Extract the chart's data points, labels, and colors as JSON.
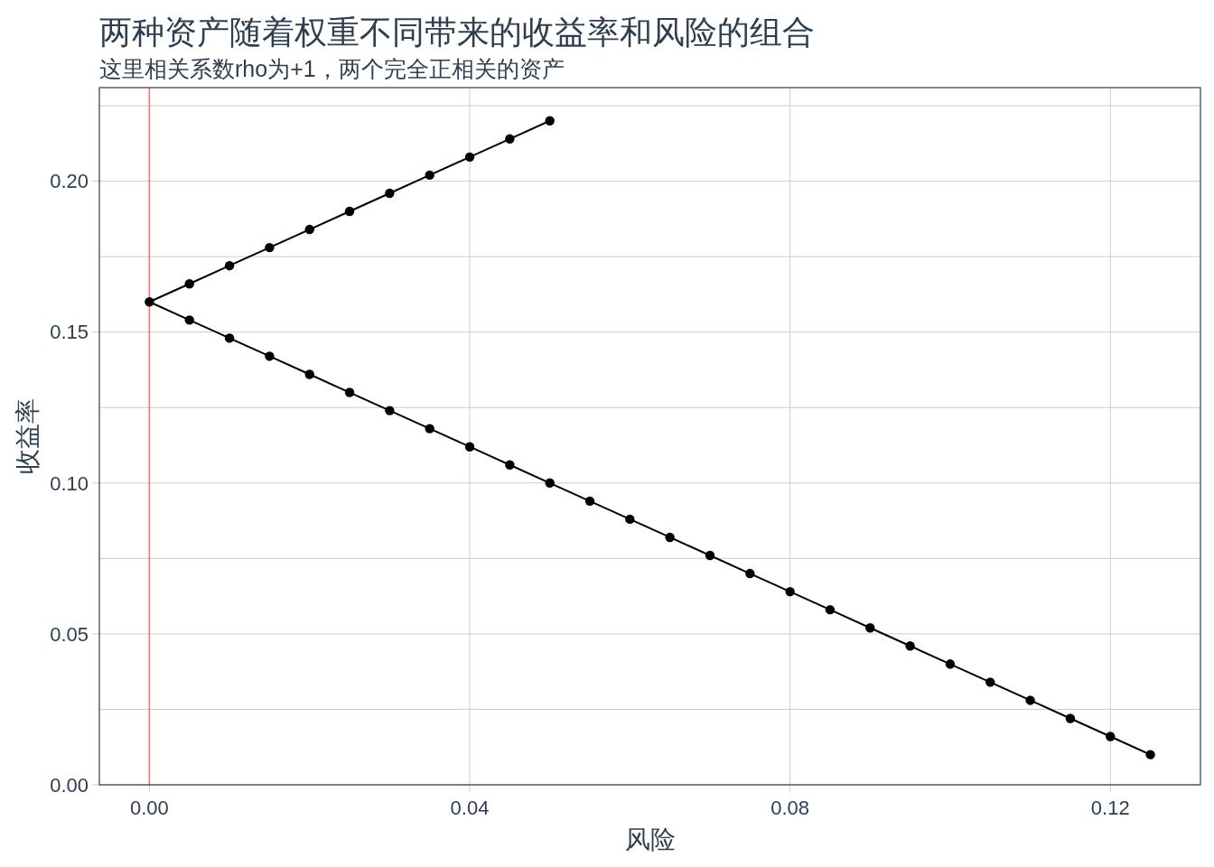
{
  "chart_data": {
    "type": "line",
    "title": "两种资产随着权重不同带来的收益率和风险的组合",
    "subtitle": "这里相关系数rho为+1，两个完全正相关的资产",
    "xlabel": "风险",
    "ylabel": "收益率",
    "x": [
      0.05,
      0.045,
      0.04,
      0.035,
      0.03,
      0.025,
      0.02,
      0.015,
      0.01,
      0.005,
      0,
      0.005,
      0.01,
      0.015,
      0.02,
      0.025,
      0.03,
      0.035,
      0.04,
      0.045,
      0.05,
      0.055,
      0.06,
      0.065,
      0.07,
      0.075,
      0.08,
      0.085,
      0.09,
      0.095,
      0.1,
      0.105,
      0.11,
      0.115,
      0.12,
      0.125
    ],
    "series": [
      {
        "color": "#000000",
        "values": [
          0.22,
          0.214,
          0.208,
          0.202,
          0.196,
          0.19,
          0.184,
          0.178,
          0.172,
          0.166,
          0.16,
          0.154,
          0.148,
          0.142,
          0.136,
          0.13,
          0.124,
          0.118,
          0.112,
          0.106,
          0.1,
          0.094,
          0.088,
          0.082,
          0.076,
          0.07,
          0.064,
          0.058,
          0.052,
          0.046,
          0.04,
          0.034,
          0.028,
          0.022,
          0.016,
          0.01
        ]
      }
    ],
    "marker": "circle",
    "line_style": "solid",
    "xlim": [
      -0.00625,
      0.13125
    ],
    "ylim": [
      0,
      0.231
    ],
    "xticks": [
      {
        "value": 0,
        "label": "0.00"
      },
      {
        "value": 0.04,
        "label": "0.04"
      },
      {
        "value": 0.08,
        "label": "0.08"
      },
      {
        "value": 0.12,
        "label": "0.12"
      }
    ],
    "yticks": [
      {
        "value": 0,
        "label": "0.00"
      },
      {
        "value": 0.025,
        "label": null
      },
      {
        "value": 0.05,
        "label": "0.05"
      },
      {
        "value": 0.075,
        "label": null
      },
      {
        "value": 0.1,
        "label": "0.10"
      },
      {
        "value": 0.125,
        "label": null
      },
      {
        "value": 0.15,
        "label": "0.15"
      },
      {
        "value": 0.175,
        "label": null
      },
      {
        "value": 0.2,
        "label": "0.20"
      },
      {
        "value": 0.225,
        "label": null
      }
    ],
    "grid": true,
    "ref_lines": [
      {
        "axis": "x",
        "value": 0,
        "color": "#f07070"
      }
    ]
  }
}
